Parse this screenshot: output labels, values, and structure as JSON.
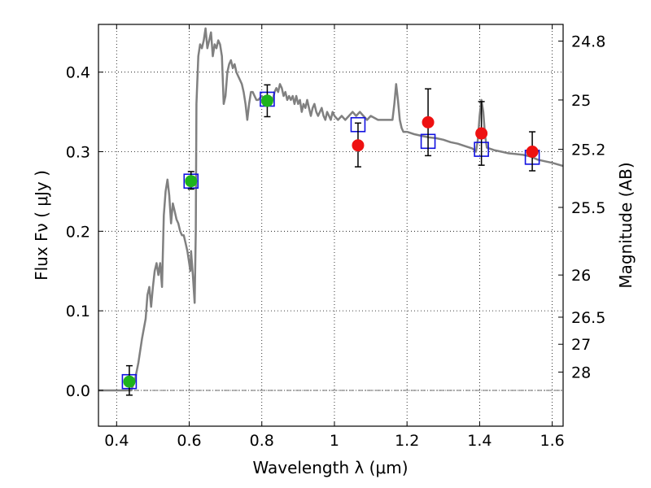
{
  "chart_data": {
    "type": "scatter",
    "xlabel": "Wavelength  λ (μm)",
    "ylabel": "Flux  Fν  ( μJy )",
    "ylabel_right": "Magnitude (AB)",
    "xlim": [
      0.35,
      1.63
    ],
    "ylim": [
      -0.045,
      0.46
    ],
    "x_ticks": [
      0.4,
      0.6,
      0.8,
      1.0,
      1.2,
      1.4,
      1.6
    ],
    "x_tick_labels": [
      "0.4",
      "0.6",
      "0.8",
      "1",
      "1.2",
      "1.4",
      "1.6"
    ],
    "y_ticks": [
      0.0,
      0.1,
      0.2,
      0.3,
      0.4
    ],
    "y_tick_labels": [
      "0.0",
      "0.1",
      "0.2",
      "0.3",
      "0.4"
    ],
    "right_ticks": [
      {
        "label": "24.8",
        "flux": 0.439
      },
      {
        "label": "25",
        "flux": 0.365
      },
      {
        "label": "25.2",
        "flux": 0.303
      },
      {
        "label": "25.5",
        "flux": 0.23
      },
      {
        "label": "26",
        "flux": 0.145
      },
      {
        "label": "26.5",
        "flux": 0.092
      },
      {
        "label": "27",
        "flux": 0.058
      },
      {
        "label": "28",
        "flux": 0.023
      }
    ],
    "grid": true,
    "zero_line": true,
    "colors": {
      "sed": "#808080",
      "green_points": "#1db31d",
      "red_points": "#ee1111",
      "model_boxes": "#1010e0",
      "errorbar": "#000000"
    },
    "series": [
      {
        "kind": "line",
        "points": [
          [
            0.35,
            0.0
          ],
          [
            0.44,
            0.0
          ],
          [
            0.45,
            0.012
          ],
          [
            0.46,
            0.035
          ],
          [
            0.47,
            0.065
          ],
          [
            0.48,
            0.09
          ],
          [
            0.485,
            0.12
          ],
          [
            0.49,
            0.13
          ],
          [
            0.495,
            0.105
          ],
          [
            0.5,
            0.13
          ],
          [
            0.505,
            0.15
          ],
          [
            0.51,
            0.16
          ],
          [
            0.515,
            0.145
          ],
          [
            0.52,
            0.16
          ],
          [
            0.525,
            0.13
          ],
          [
            0.53,
            0.22
          ],
          [
            0.535,
            0.25
          ],
          [
            0.54,
            0.265
          ],
          [
            0.545,
            0.245
          ],
          [
            0.55,
            0.21
          ],
          [
            0.555,
            0.235
          ],
          [
            0.56,
            0.225
          ],
          [
            0.565,
            0.215
          ],
          [
            0.57,
            0.21
          ],
          [
            0.575,
            0.2
          ],
          [
            0.58,
            0.195
          ],
          [
            0.585,
            0.195
          ],
          [
            0.59,
            0.185
          ],
          [
            0.595,
            0.175
          ],
          [
            0.6,
            0.16
          ],
          [
            0.603,
            0.15
          ],
          [
            0.605,
            0.175
          ],
          [
            0.61,
            0.145
          ],
          [
            0.615,
            0.11
          ],
          [
            0.618,
            0.2
          ],
          [
            0.62,
            0.36
          ],
          [
            0.625,
            0.42
          ],
          [
            0.63,
            0.435
          ],
          [
            0.635,
            0.43
          ],
          [
            0.64,
            0.44
          ],
          [
            0.645,
            0.455
          ],
          [
            0.65,
            0.43
          ],
          [
            0.655,
            0.44
          ],
          [
            0.66,
            0.45
          ],
          [
            0.665,
            0.42
          ],
          [
            0.67,
            0.435
          ],
          [
            0.675,
            0.43
          ],
          [
            0.68,
            0.44
          ],
          [
            0.685,
            0.435
          ],
          [
            0.69,
            0.42
          ],
          [
            0.695,
            0.36
          ],
          [
            0.7,
            0.37
          ],
          [
            0.705,
            0.4
          ],
          [
            0.71,
            0.41
          ],
          [
            0.715,
            0.415
          ],
          [
            0.72,
            0.405
          ],
          [
            0.725,
            0.41
          ],
          [
            0.73,
            0.4
          ],
          [
            0.735,
            0.395
          ],
          [
            0.74,
            0.39
          ],
          [
            0.745,
            0.385
          ],
          [
            0.75,
            0.375
          ],
          [
            0.755,
            0.36
          ],
          [
            0.76,
            0.34
          ],
          [
            0.765,
            0.36
          ],
          [
            0.77,
            0.375
          ],
          [
            0.775,
            0.375
          ],
          [
            0.78,
            0.37
          ],
          [
            0.785,
            0.365
          ],
          [
            0.79,
            0.365
          ],
          [
            0.8,
            0.37
          ],
          [
            0.81,
            0.365
          ],
          [
            0.815,
            0.37
          ],
          [
            0.82,
            0.37
          ],
          [
            0.83,
            0.365
          ],
          [
            0.835,
            0.375
          ],
          [
            0.84,
            0.38
          ],
          [
            0.845,
            0.375
          ],
          [
            0.85,
            0.385
          ],
          [
            0.855,
            0.38
          ],
          [
            0.86,
            0.37
          ],
          [
            0.865,
            0.375
          ],
          [
            0.87,
            0.365
          ],
          [
            0.875,
            0.37
          ],
          [
            0.88,
            0.365
          ],
          [
            0.885,
            0.37
          ],
          [
            0.89,
            0.36
          ],
          [
            0.895,
            0.37
          ],
          [
            0.9,
            0.36
          ],
          [
            0.905,
            0.365
          ],
          [
            0.91,
            0.35
          ],
          [
            0.915,
            0.36
          ],
          [
            0.92,
            0.355
          ],
          [
            0.925,
            0.365
          ],
          [
            0.93,
            0.355
          ],
          [
            0.935,
            0.345
          ],
          [
            0.94,
            0.355
          ],
          [
            0.945,
            0.36
          ],
          [
            0.95,
            0.35
          ],
          [
            0.955,
            0.345
          ],
          [
            0.96,
            0.35
          ],
          [
            0.965,
            0.355
          ],
          [
            0.97,
            0.345
          ],
          [
            0.975,
            0.34
          ],
          [
            0.98,
            0.35
          ],
          [
            0.985,
            0.345
          ],
          [
            0.99,
            0.34
          ],
          [
            0.995,
            0.35
          ],
          [
            1.0,
            0.345
          ],
          [
            1.01,
            0.34
          ],
          [
            1.02,
            0.345
          ],
          [
            1.03,
            0.34
          ],
          [
            1.04,
            0.345
          ],
          [
            1.05,
            0.35
          ],
          [
            1.06,
            0.345
          ],
          [
            1.07,
            0.35
          ],
          [
            1.08,
            0.345
          ],
          [
            1.09,
            0.34
          ],
          [
            1.1,
            0.345
          ],
          [
            1.12,
            0.34
          ],
          [
            1.14,
            0.34
          ],
          [
            1.16,
            0.34
          ],
          [
            1.165,
            0.36
          ],
          [
            1.17,
            0.385
          ],
          [
            1.175,
            0.365
          ],
          [
            1.18,
            0.34
          ],
          [
            1.185,
            0.33
          ],
          [
            1.19,
            0.325
          ],
          [
            1.2,
            0.325
          ],
          [
            1.22,
            0.322
          ],
          [
            1.24,
            0.32
          ],
          [
            1.26,
            0.318
          ],
          [
            1.28,
            0.317
          ],
          [
            1.3,
            0.315
          ],
          [
            1.32,
            0.312
          ],
          [
            1.34,
            0.31
          ],
          [
            1.36,
            0.307
          ],
          [
            1.38,
            0.304
          ],
          [
            1.39,
            0.3
          ],
          [
            1.395,
            0.315
          ],
          [
            1.4,
            0.345
          ],
          [
            1.405,
            0.365
          ],
          [
            1.41,
            0.35
          ],
          [
            1.415,
            0.32
          ],
          [
            1.42,
            0.305
          ],
          [
            1.44,
            0.302
          ],
          [
            1.46,
            0.3
          ],
          [
            1.48,
            0.298
          ],
          [
            1.5,
            0.297
          ],
          [
            1.52,
            0.296
          ],
          [
            1.54,
            0.294
          ],
          [
            1.56,
            0.29
          ],
          [
            1.58,
            0.288
          ],
          [
            1.6,
            0.286
          ],
          [
            1.63,
            0.282
          ]
        ]
      },
      {
        "kind": "model_boxes",
        "points": [
          {
            "x": 0.435,
            "y": 0.011
          },
          {
            "x": 0.605,
            "y": 0.263
          },
          {
            "x": 0.815,
            "y": 0.366
          },
          {
            "x": 1.065,
            "y": 0.334
          },
          {
            "x": 1.258,
            "y": 0.313
          },
          {
            "x": 1.405,
            "y": 0.303
          },
          {
            "x": 1.545,
            "y": 0.293
          }
        ]
      },
      {
        "kind": "green_points",
        "points": [
          {
            "x": 0.435,
            "y": 0.011,
            "err_low": 0.017,
            "err_high": 0.02
          },
          {
            "x": 0.605,
            "y": 0.263,
            "err_low": 0.01,
            "err_high": 0.012
          },
          {
            "x": 0.815,
            "y": 0.364,
            "err_low": 0.02,
            "err_high": 0.02
          }
        ]
      },
      {
        "kind": "red_points",
        "points": [
          {
            "x": 1.065,
            "y": 0.308,
            "err_low": 0.027,
            "err_high": 0.028
          },
          {
            "x": 1.258,
            "y": 0.337,
            "err_low": 0.042,
            "err_high": 0.042
          },
          {
            "x": 1.405,
            "y": 0.323,
            "err_low": 0.04,
            "err_high": 0.04
          },
          {
            "x": 1.545,
            "y": 0.3,
            "err_low": 0.024,
            "err_high": 0.025
          }
        ]
      }
    ]
  }
}
